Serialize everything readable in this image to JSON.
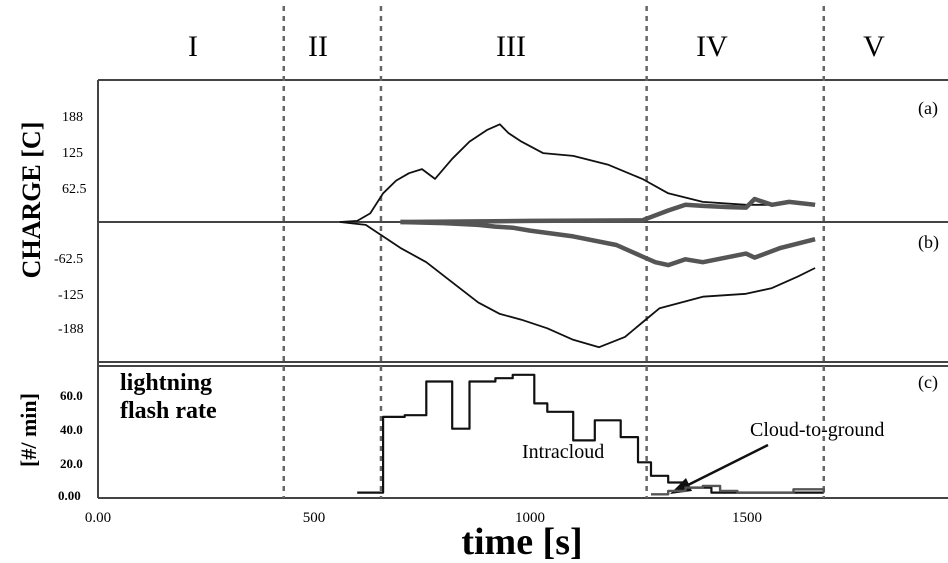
{
  "chart_data": [
    {
      "panel": "(a)",
      "type": "line",
      "ylabel": "CHARGE [C]",
      "xlim": [
        0,
        2000
      ],
      "ylim": [
        0,
        240
      ],
      "y_ticks": [
        "188",
        "125",
        "62.5"
      ],
      "y_tick_values": [
        188,
        125,
        62.5
      ],
      "series": [
        {
          "style": "thin",
          "x": [
            560,
            600,
            630,
            660,
            690,
            720,
            750,
            780,
            820,
            860,
            900,
            930,
            950,
            980,
            1030,
            1100,
            1180,
            1260,
            1320,
            1400,
            1500,
            1560,
            1620,
            1660
          ],
          "values": [
            0,
            2,
            15,
            50,
            72,
            85,
            92,
            75,
            110,
            140,
            160,
            170,
            155,
            140,
            120,
            115,
            100,
            75,
            50,
            35,
            30,
            30,
            35,
            32
          ]
        },
        {
          "style": "thick",
          "x": [
            700,
            1000,
            1260,
            1320,
            1360,
            1400,
            1460,
            1500,
            1520,
            1560,
            1600,
            1660
          ],
          "values": [
            0,
            2,
            3,
            20,
            30,
            28,
            26,
            25,
            40,
            30,
            35,
            30
          ]
        }
      ]
    },
    {
      "panel": "(b)",
      "type": "line",
      "xlim": [
        0,
        2000
      ],
      "ylim": [
        -240,
        0
      ],
      "y_ticks": [
        "-62.5",
        "-125",
        "-188"
      ],
      "y_tick_values": [
        -62.5,
        -125,
        -188
      ],
      "series": [
        {
          "style": "thin",
          "x": [
            560,
            620,
            660,
            700,
            760,
            820,
            880,
            930,
            980,
            1040,
            1100,
            1160,
            1220,
            1260,
            1300,
            1400,
            1500,
            1560,
            1620,
            1660
          ],
          "values": [
            0,
            -5,
            -25,
            -45,
            -70,
            -105,
            -140,
            -160,
            -170,
            -185,
            -205,
            -218,
            -200,
            -175,
            -150,
            -130,
            -125,
            -115,
            -95,
            -80
          ]
        },
        {
          "style": "thick",
          "x": [
            700,
            800,
            880,
            920,
            960,
            1000,
            1100,
            1200,
            1260,
            1290,
            1320,
            1360,
            1400,
            1500,
            1520,
            1580,
            1660
          ],
          "values": [
            0,
            -2,
            -5,
            -8,
            -10,
            -15,
            -25,
            -40,
            -60,
            -70,
            -75,
            -65,
            -70,
            -55,
            -62,
            -45,
            -30
          ]
        }
      ]
    },
    {
      "panel": "(c)",
      "type": "line",
      "step": true,
      "ylabel": "[#/ min]",
      "label_lines": [
        "lightning",
        "flash rate"
      ],
      "xlabel": "time [s]",
      "xlim": [
        0,
        2000
      ],
      "ylim": [
        0,
        80
      ],
      "x_ticks": [
        "0.00",
        "500",
        "1000",
        "1500"
      ],
      "x_tick_values": [
        0,
        500,
        1000,
        1500
      ],
      "y_ticks": [
        "0.00",
        "20.0",
        "40.0",
        "60.0"
      ],
      "y_tick_values": [
        0,
        20,
        40,
        60
      ],
      "annotations": [
        "Intracloud",
        "Cloud-to-ground"
      ],
      "series": [
        {
          "name": "Intracloud",
          "x": [
            600,
            650,
            660,
            710,
            760,
            820,
            860,
            920,
            960,
            1010,
            1040,
            1100,
            1150,
            1210,
            1250,
            1280,
            1320,
            1360,
            1420,
            1520,
            1560,
            1640,
            1680
          ],
          "values": [
            2,
            2,
            47,
            48,
            68,
            40,
            68,
            70,
            72,
            55,
            50,
            33,
            45,
            35,
            20,
            12,
            8,
            5,
            2,
            2,
            2,
            2,
            2
          ]
        },
        {
          "name": "Cloud-to-ground",
          "x": [
            1280,
            1320,
            1360,
            1400,
            1440,
            1480,
            1560,
            1610,
            1680
          ],
          "values": [
            1,
            3,
            5,
            6,
            3,
            2,
            2,
            4,
            2
          ]
        }
      ]
    }
  ],
  "stages": [
    "I",
    "II",
    "III",
    "IV",
    "V"
  ],
  "stage_bounds": [
    430,
    655,
    1270,
    1680
  ],
  "colors": {
    "ink": "#111111",
    "axis": "#444444",
    "thick": "#555555",
    "dash": "#666666"
  }
}
